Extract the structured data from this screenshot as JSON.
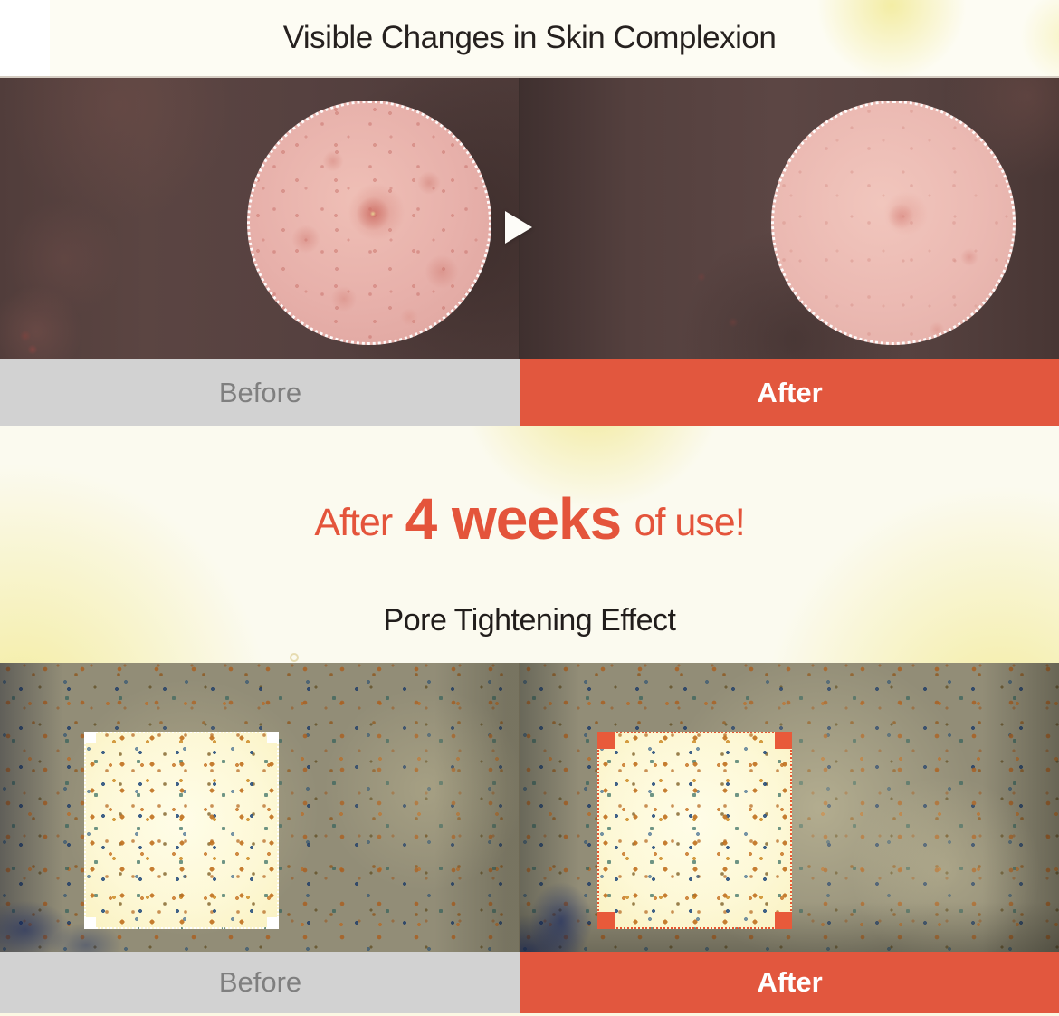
{
  "colors": {
    "accent_orange": "#e2573e",
    "headline_orange": "#e4543b",
    "bar_gray": "#d2d2d2",
    "yellow_blob": "#f2e996"
  },
  "top": {
    "title": "Visible Changes in Skin Complexion"
  },
  "comparison_skin": {
    "before_label": "Before",
    "after_label": "After"
  },
  "midsection": {
    "headline_prefix": "After",
    "headline_highlight": "4 weeks",
    "headline_suffix": "of use!",
    "subtitle": "Pore Tightening Effect"
  },
  "comparison_pores": {
    "before_label": "Before",
    "after_label": "After"
  },
  "icons": {
    "next_arrow": "right-pointing-play-triangle",
    "magnifier_before": "dotted-circle-highlight",
    "magnifier_after": "dotted-circle-highlight",
    "square_before": "dotted-square-highlight-white",
    "square_after": "dotted-square-highlight-orange"
  }
}
